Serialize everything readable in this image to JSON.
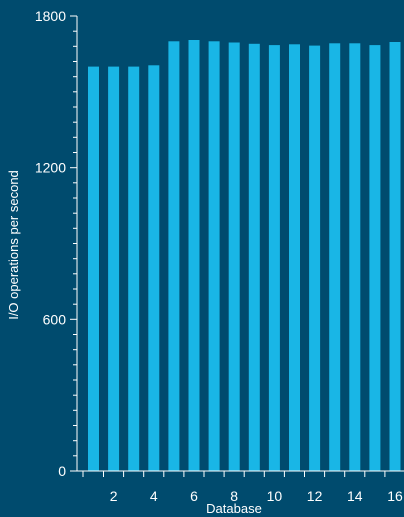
{
  "chart_data": {
    "type": "bar",
    "title": "",
    "xlabel": "Database",
    "ylabel": "I/O operations per second",
    "ylim": [
      0,
      1800
    ],
    "yticks": [
      0,
      600,
      1200,
      1800
    ],
    "categories": [
      "1",
      "2",
      "3",
      "4",
      "5",
      "6",
      "7",
      "8",
      "9",
      "10",
      "11",
      "12",
      "13",
      "14",
      "15",
      "16"
    ],
    "x_tick_labels": [
      "2",
      "4",
      "6",
      "8",
      "10",
      "12",
      "14",
      "16"
    ],
    "values": [
      1600,
      1600,
      1600,
      1605,
      1700,
      1705,
      1700,
      1695,
      1690,
      1685,
      1688,
      1683,
      1692,
      1692,
      1685,
      1697
    ],
    "grid": false,
    "colors": {
      "background": "#004b6e",
      "bar": "#19b6e6",
      "axis": "#ffffff",
      "text": "#ffffff"
    }
  }
}
